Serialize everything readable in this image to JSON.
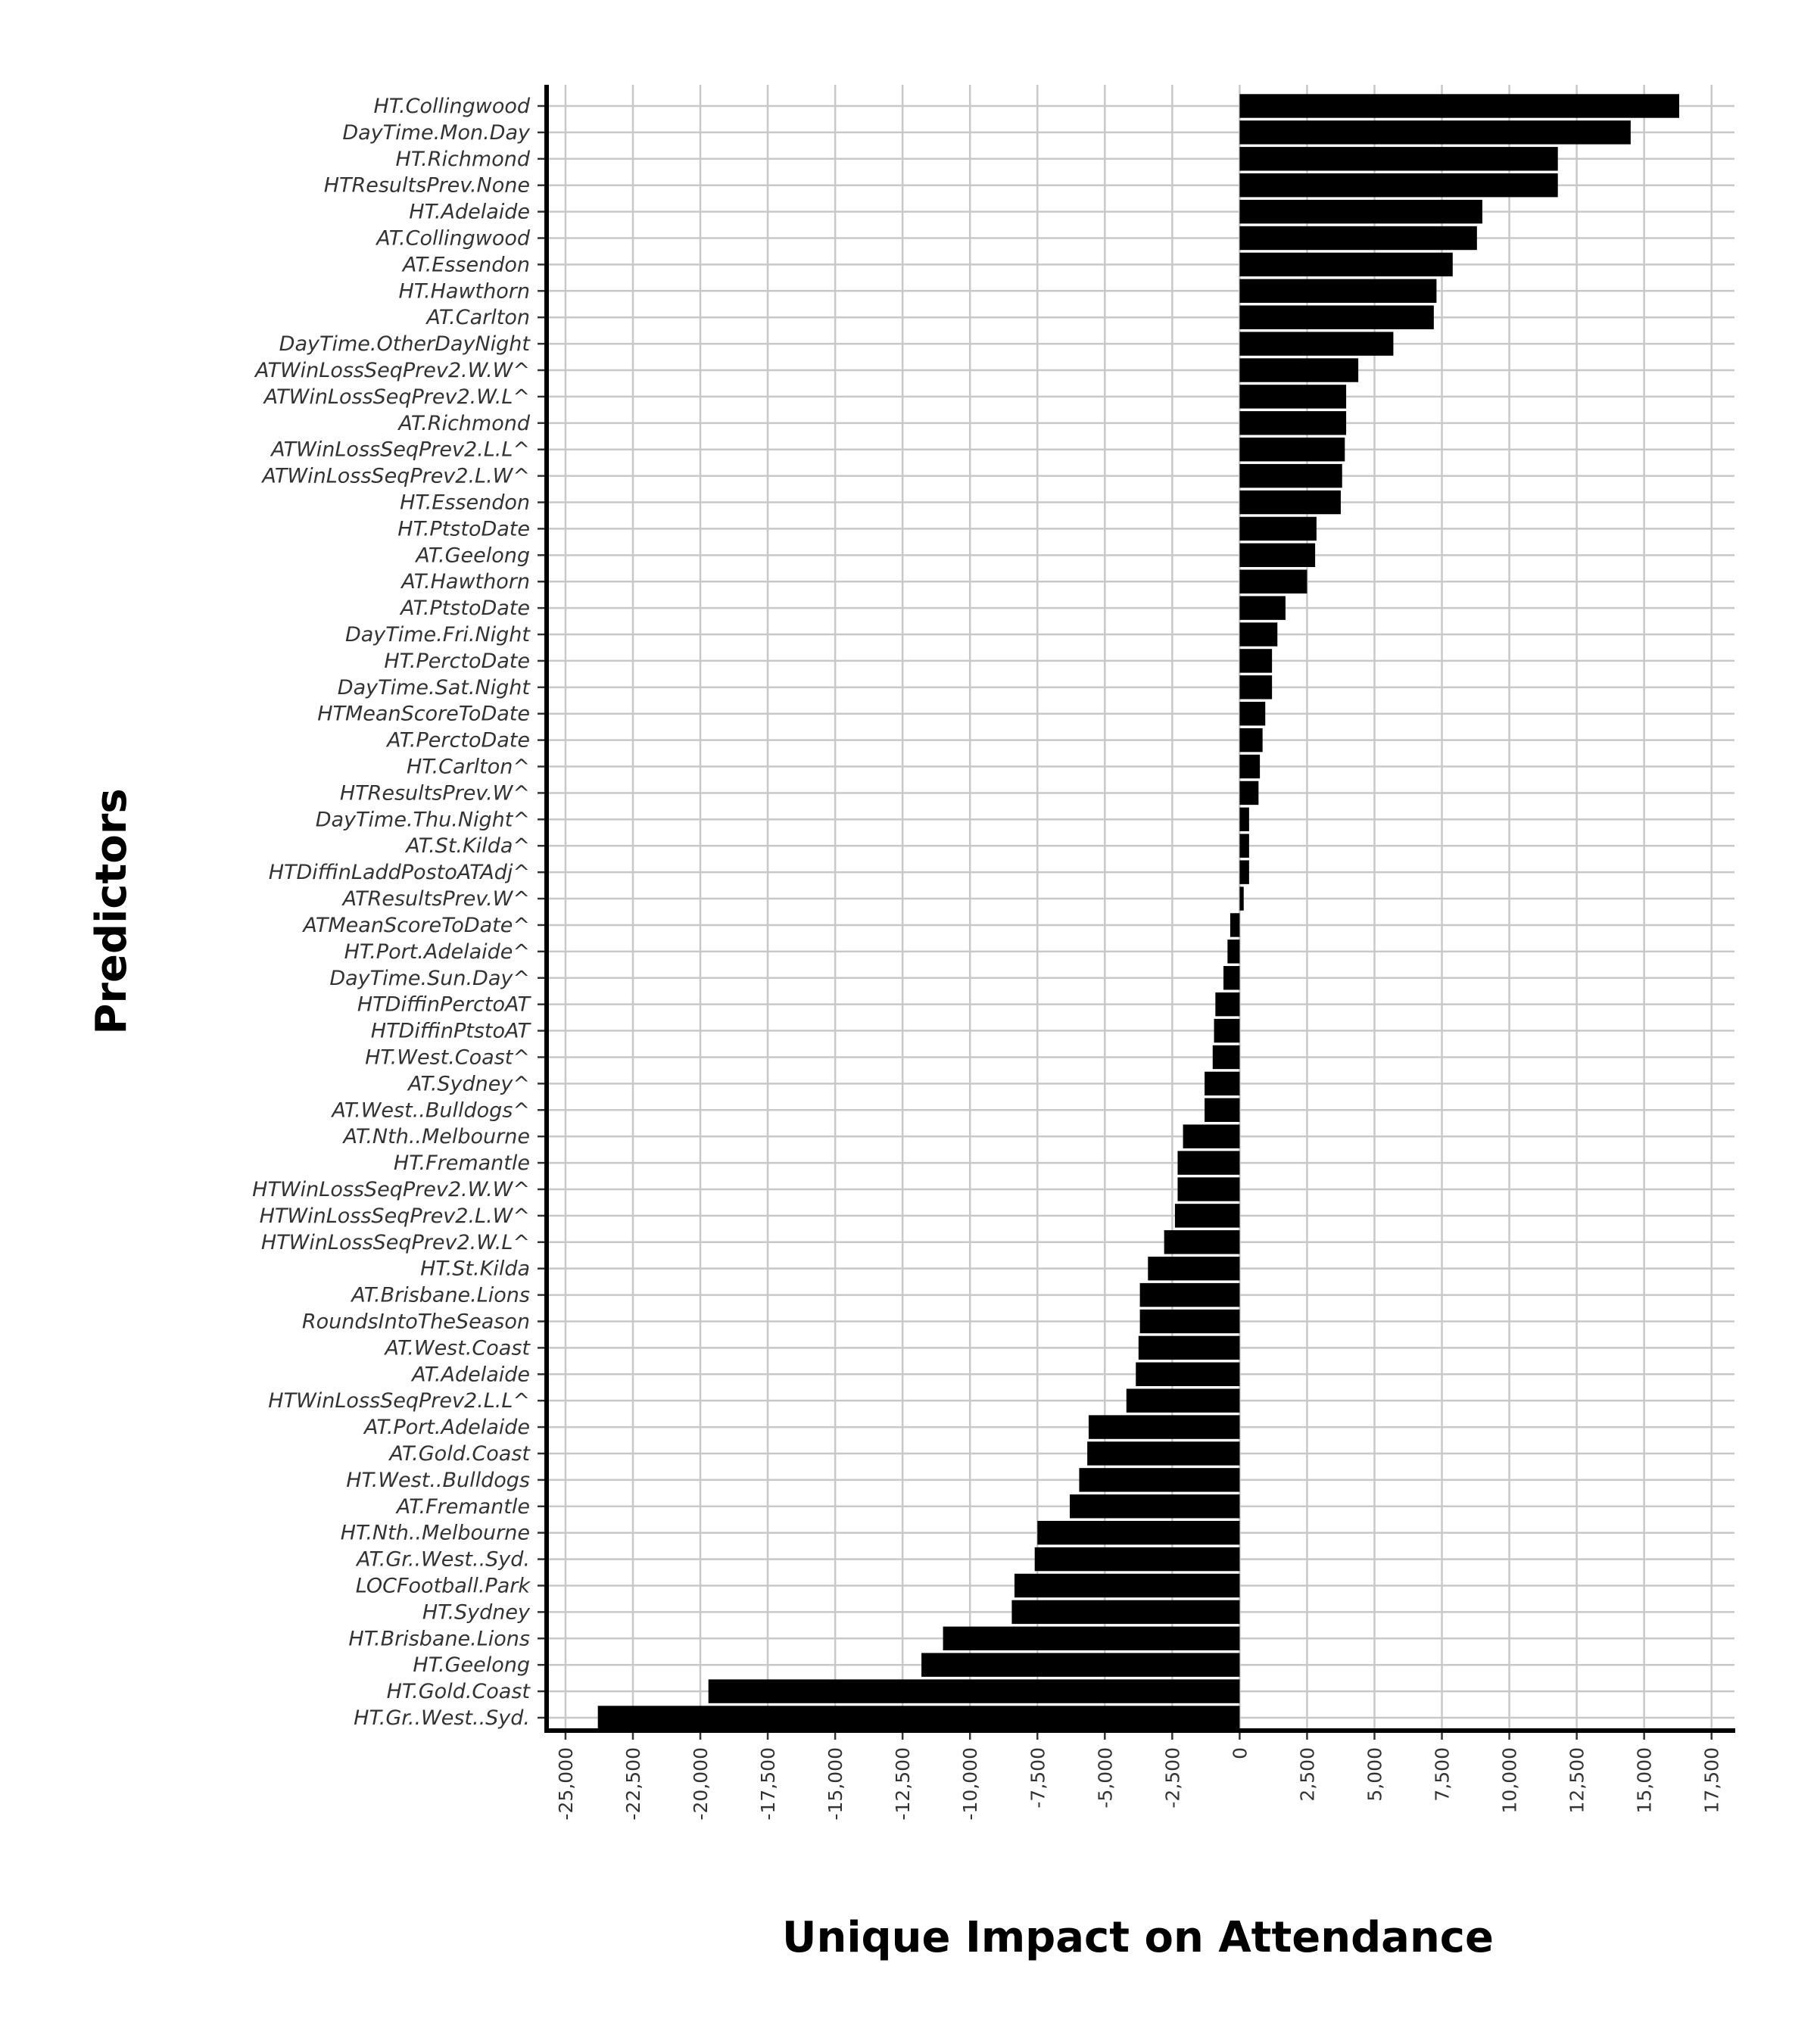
{
  "chart_data": {
    "type": "bar",
    "orientation": "horizontal",
    "xlabel": "Unique Impact on Attendance",
    "ylabel": "Predictors",
    "xlim": [
      -25700,
      18350
    ],
    "xticks": [
      -25000,
      -22500,
      -20000,
      -17500,
      -15000,
      -12500,
      -10000,
      -7500,
      -5000,
      -2500,
      0,
      2500,
      5000,
      7500,
      10000,
      12500,
      15000,
      17500
    ],
    "xtick_labels": [
      "-25,000",
      "-22,500",
      "-20,000",
      "-17,500",
      "-15,000",
      "-12,500",
      "-10,000",
      "-7,500",
      "-5,000",
      "-2,500",
      "0",
      "2,500",
      "5,000",
      "7,500",
      "10,000",
      "12,500",
      "15,000",
      "17,500"
    ],
    "grid": true,
    "bar_color": "#000000",
    "categories": [
      "HT.Collingwood",
      "DayTime.Mon.Day",
      "HT.Richmond",
      "HTResultsPrev.None",
      "HT.Adelaide",
      "AT.Collingwood",
      "AT.Essendon",
      "HT.Hawthorn",
      "AT.Carlton",
      "DayTime.OtherDayNight",
      "ATWinLossSeqPrev2.W.W^",
      "ATWinLossSeqPrev2.W.L^",
      "AT.Richmond",
      "ATWinLossSeqPrev2.L.L^",
      "ATWinLossSeqPrev2.L.W^",
      "HT.Essendon",
      "HT.PtstoDate",
      "AT.Geelong",
      "AT.Hawthorn",
      "AT.PtstoDate",
      "DayTime.Fri.Night",
      "HT.PerctoDate",
      "DayTime.Sat.Night",
      "HTMeanScoreToDate",
      "AT.PerctoDate",
      "HT.Carlton^",
      "HTResultsPrev.W^",
      "DayTime.Thu.Night^",
      "AT.St.Kilda^",
      "HTDiffinLaddPostoATAdj^",
      "ATResultsPrev.W^",
      "ATMeanScoreToDate^",
      "HT.Port.Adelaide^",
      "DayTime.Sun.Day^",
      "HTDiffinPerctoAT",
      "HTDiffinPtstoAT",
      "HT.West.Coast^",
      "AT.Sydney^",
      "AT.West..Bulldogs^",
      "AT.Nth..Melbourne",
      "HT.Fremantle",
      "HTWinLossSeqPrev2.W.W^",
      "HTWinLossSeqPrev2.L.W^",
      "HTWinLossSeqPrev2.W.L^",
      "HT.St.Kilda",
      "AT.Brisbane.Lions",
      "RoundsIntoTheSeason",
      "AT.West.Coast",
      "AT.Adelaide",
      "HTWinLossSeqPrev2.L.L^",
      "AT.Port.Adelaide",
      "AT.Gold.Coast",
      "HT.West..Bulldogs",
      "AT.Fremantle",
      "HT.Nth..Melbourne",
      "AT.Gr..West..Syd.",
      "LOCFootball.Park",
      "HT.Sydney",
      "HT.Brisbane.Lions",
      "HT.Geelong",
      "HT.Gold.Coast",
      "HT.Gr..West..Syd."
    ],
    "values": [
      16300,
      14500,
      11800,
      11800,
      9000,
      8800,
      7900,
      7300,
      7200,
      5700,
      4400,
      3950,
      3950,
      3900,
      3800,
      3750,
      2850,
      2800,
      2500,
      1700,
      1400,
      1200,
      1200,
      950,
      850,
      750,
      700,
      350,
      350,
      350,
      150,
      -350,
      -450,
      -600,
      -900,
      -950,
      -1000,
      -1300,
      -1300,
      -2100,
      -2300,
      -2300,
      -2400,
      -2800,
      -3400,
      -3700,
      -3700,
      -3750,
      -3850,
      -4200,
      -5600,
      -5650,
      -5950,
      -6300,
      -7500,
      -7600,
      -8350,
      -8450,
      -11000,
      -11800,
      -19700,
      -23800
    ]
  }
}
